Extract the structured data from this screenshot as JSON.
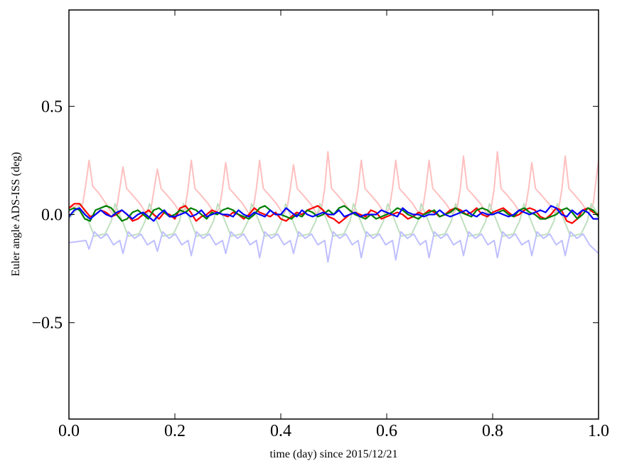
{
  "chart_data": {
    "type": "line",
    "title": "",
    "xlabel": "time (day) since 2015/12/21",
    "ylabel": "Euler angle ADS-ISS (deg)",
    "xlim": [
      0.0,
      1.0
    ],
    "ylim": [
      -0.945,
      0.945
    ],
    "xticks": [
      0.0,
      0.2,
      0.4,
      0.6,
      0.8,
      1.0
    ],
    "xtick_labels": [
      "0.0",
      "0.2",
      "0.4",
      "0.6",
      "0.8",
      "1.0"
    ],
    "yticks": [
      -0.5,
      0.0,
      0.5
    ],
    "ytick_labels": [
      "−0.5",
      "0.0",
      "0.5"
    ],
    "grid": false,
    "legend": "none",
    "series": [
      {
        "color": "#ffbfbf",
        "x": [
          0,
          0.026,
          0.032,
          0.038,
          0.045,
          0.056,
          0.07,
          0.083,
          0.09,
          0.096,
          0.102,
          0.109,
          0.12,
          0.134,
          0.147,
          0.155,
          0.161,
          0.167,
          0.174,
          0.185,
          0.199,
          0.212,
          0.219,
          0.225,
          0.231,
          0.238,
          0.249,
          0.263,
          0.276,
          0.284,
          0.29,
          0.296,
          0.303,
          0.314,
          0.328,
          0.341,
          0.348,
          0.354,
          0.36,
          0.367,
          0.378,
          0.392,
          0.405,
          0.412,
          0.418,
          0.424,
          0.431,
          0.442,
          0.456,
          0.469,
          0.477,
          0.483,
          0.489,
          0.496,
          0.507,
          0.521,
          0.534,
          0.54,
          0.546,
          0.552,
          0.559,
          0.57,
          0.584,
          0.597,
          0.605,
          0.611,
          0.617,
          0.624,
          0.635,
          0.649,
          0.662,
          0.668,
          0.674,
          0.68,
          0.687,
          0.698,
          0.712,
          0.725,
          0.733,
          0.739,
          0.745,
          0.752,
          0.763,
          0.777,
          0.79,
          0.797,
          0.803,
          0.809,
          0.816,
          0.827,
          0.841,
          0.854,
          0.862,
          0.868,
          0.874,
          0.881,
          0.892,
          0.906,
          0.919,
          0.925,
          0.931,
          0.937,
          0.944,
          0.955,
          0.969,
          0.982,
          0.99,
          1.0
        ],
        "y": [
          0.03,
          0.05,
          0.14,
          0.25,
          0.13,
          0.1,
          0.05,
          0.0,
          0.03,
          0.12,
          0.22,
          0.12,
          0.09,
          0.05,
          0.0,
          0.03,
          0.12,
          0.21,
          0.12,
          0.09,
          0.05,
          0.0,
          0.03,
          0.12,
          0.25,
          0.12,
          0.09,
          0.05,
          0.0,
          0.03,
          0.12,
          0.24,
          0.12,
          0.09,
          0.05,
          0.0,
          0.03,
          0.12,
          0.25,
          0.12,
          0.09,
          0.05,
          0.0,
          0.03,
          0.12,
          0.23,
          0.12,
          0.09,
          0.05,
          0.0,
          0.03,
          0.12,
          0.29,
          0.12,
          0.09,
          0.05,
          0.0,
          0.03,
          0.12,
          0.25,
          0.12,
          0.09,
          0.05,
          0.0,
          0.03,
          0.12,
          0.25,
          0.12,
          0.09,
          0.05,
          0.0,
          0.03,
          0.12,
          0.25,
          0.12,
          0.09,
          0.05,
          0.0,
          0.03,
          0.12,
          0.27,
          0.12,
          0.09,
          0.05,
          0.0,
          0.03,
          0.12,
          0.29,
          0.12,
          0.09,
          0.05,
          0.0,
          0.03,
          0.12,
          0.24,
          0.12,
          0.09,
          0.05,
          0.0,
          0.03,
          0.12,
          0.27,
          0.12,
          0.09,
          0.05,
          0.0,
          0.05,
          0.25
        ]
      },
      {
        "color": "#bfdfbf",
        "x": [
          0,
          0.023,
          0.035,
          0.048,
          0.068,
          0.08,
          0.087,
          0.099,
          0.112,
          0.132,
          0.144,
          0.152,
          0.164,
          0.177,
          0.197,
          0.209,
          0.216,
          0.228,
          0.241,
          0.261,
          0.273,
          0.281,
          0.293,
          0.306,
          0.326,
          0.338,
          0.345,
          0.357,
          0.37,
          0.39,
          0.402,
          0.409,
          0.421,
          0.434,
          0.454,
          0.466,
          0.474,
          0.486,
          0.499,
          0.519,
          0.531,
          0.537,
          0.549,
          0.562,
          0.582,
          0.594,
          0.602,
          0.614,
          0.627,
          0.647,
          0.659,
          0.665,
          0.677,
          0.69,
          0.71,
          0.722,
          0.73,
          0.742,
          0.755,
          0.775,
          0.787,
          0.794,
          0.806,
          0.819,
          0.839,
          0.851,
          0.859,
          0.871,
          0.884,
          0.904,
          0.916,
          0.922,
          0.934,
          0.947,
          0.967,
          0.979,
          0.986,
          1.0
        ],
        "y": [
          -0.02,
          0.05,
          -0.02,
          -0.1,
          -0.09,
          -0.03,
          0.05,
          -0.02,
          -0.1,
          -0.09,
          -0.03,
          0.05,
          -0.02,
          -0.1,
          -0.09,
          -0.03,
          0.05,
          -0.02,
          -0.1,
          -0.09,
          -0.03,
          0.05,
          -0.02,
          -0.1,
          -0.09,
          -0.03,
          0.05,
          -0.02,
          -0.1,
          -0.09,
          -0.03,
          0.05,
          -0.02,
          -0.1,
          -0.09,
          -0.03,
          0.05,
          -0.02,
          -0.1,
          -0.09,
          -0.03,
          0.05,
          -0.02,
          -0.1,
          -0.09,
          -0.03,
          0.05,
          -0.02,
          -0.1,
          -0.09,
          -0.03,
          0.05,
          -0.02,
          -0.1,
          -0.09,
          -0.03,
          0.05,
          -0.02,
          -0.1,
          -0.09,
          -0.03,
          0.05,
          -0.02,
          -0.1,
          -0.09,
          -0.03,
          0.05,
          -0.02,
          -0.1,
          -0.09,
          -0.03,
          0.05,
          -0.02,
          -0.1,
          -0.09,
          -0.03,
          0.05,
          0.0
        ]
      },
      {
        "color": "#bfbfff",
        "x": [
          0,
          0.032,
          0.038,
          0.048,
          0.06,
          0.072,
          0.084,
          0.096,
          0.102,
          0.112,
          0.124,
          0.136,
          0.148,
          0.161,
          0.167,
          0.177,
          0.189,
          0.201,
          0.213,
          0.225,
          0.231,
          0.241,
          0.253,
          0.265,
          0.277,
          0.29,
          0.296,
          0.306,
          0.318,
          0.33,
          0.342,
          0.354,
          0.36,
          0.37,
          0.382,
          0.394,
          0.406,
          0.418,
          0.424,
          0.434,
          0.446,
          0.458,
          0.47,
          0.483,
          0.489,
          0.499,
          0.511,
          0.523,
          0.535,
          0.546,
          0.552,
          0.562,
          0.574,
          0.586,
          0.598,
          0.611,
          0.617,
          0.627,
          0.639,
          0.651,
          0.663,
          0.674,
          0.68,
          0.69,
          0.702,
          0.714,
          0.726,
          0.739,
          0.745,
          0.755,
          0.767,
          0.779,
          0.791,
          0.803,
          0.809,
          0.819,
          0.831,
          0.843,
          0.855,
          0.868,
          0.874,
          0.884,
          0.896,
          0.908,
          0.92,
          0.931,
          0.937,
          0.947,
          0.959,
          0.971,
          0.983,
          1.0
        ],
        "y": [
          -0.13,
          -0.12,
          -0.16,
          -0.08,
          -0.11,
          -0.09,
          -0.14,
          -0.12,
          -0.18,
          -0.08,
          -0.11,
          -0.09,
          -0.14,
          -0.12,
          -0.17,
          -0.08,
          -0.11,
          -0.09,
          -0.14,
          -0.12,
          -0.19,
          -0.08,
          -0.11,
          -0.09,
          -0.14,
          -0.12,
          -0.18,
          -0.08,
          -0.11,
          -0.09,
          -0.14,
          -0.12,
          -0.2,
          -0.08,
          -0.11,
          -0.09,
          -0.14,
          -0.12,
          -0.18,
          -0.08,
          -0.11,
          -0.09,
          -0.14,
          -0.12,
          -0.22,
          -0.08,
          -0.11,
          -0.09,
          -0.14,
          -0.12,
          -0.2,
          -0.08,
          -0.11,
          -0.09,
          -0.14,
          -0.12,
          -0.21,
          -0.08,
          -0.11,
          -0.09,
          -0.14,
          -0.12,
          -0.2,
          -0.08,
          -0.11,
          -0.09,
          -0.14,
          -0.12,
          -0.19,
          -0.08,
          -0.11,
          -0.09,
          -0.14,
          -0.12,
          -0.2,
          -0.08,
          -0.11,
          -0.09,
          -0.14,
          -0.12,
          -0.19,
          -0.08,
          -0.11,
          -0.09,
          -0.14,
          -0.12,
          -0.19,
          -0.08,
          -0.11,
          -0.09,
          -0.14,
          -0.18
        ]
      },
      {
        "color": "#ff0000",
        "x_step": 0.01,
        "y": [
          0.03,
          0.05,
          0.05,
          0.02,
          -0.01,
          0.0,
          0.02,
          0.01,
          -0.01,
          0.0,
          0.02,
          0.0,
          -0.03,
          -0.02,
          0.0,
          0.02,
          0.0,
          -0.02,
          0.01,
          0.0,
          -0.02,
          0.03,
          0.04,
          0.01,
          -0.03,
          -0.01,
          0.0,
          0.02,
          0.01,
          0.0,
          -0.01,
          0.01,
          0.0,
          -0.02,
          0.0,
          0.03,
          0.01,
          0.0,
          -0.01,
          0.01,
          -0.02,
          -0.03,
          -0.01,
          0.01,
          0.0,
          0.02,
          0.03,
          0.04,
          0.02,
          -0.01,
          -0.02,
          -0.04,
          -0.02,
          0.0,
          0.01,
          0.0,
          -0.01,
          0.02,
          0.01,
          -0.02,
          -0.01,
          0.0,
          0.01,
          0.0,
          -0.02,
          -0.01,
          0.01,
          0.0,
          0.02,
          0.01,
          -0.01,
          0.0,
          0.02,
          0.03,
          0.02,
          0.0,
          0.01,
          0.03,
          0.0,
          -0.01,
          0.01,
          0.02,
          0.03,
          0.01,
          -0.01,
          0.0,
          0.02,
          0.03,
          0.02,
          -0.01,
          -0.02,
          0.0,
          0.03,
          0.02,
          -0.03,
          -0.04,
          -0.02,
          0.02,
          0.03,
          0.01,
          0.0
        ]
      },
      {
        "color": "#008000",
        "x_step": 0.01,
        "y": [
          0.02,
          0.03,
          0.02,
          -0.02,
          -0.03,
          0.02,
          0.03,
          0.04,
          0.03,
          0.0,
          -0.03,
          -0.02,
          0.01,
          0.02,
          0.0,
          -0.02,
          0.02,
          0.03,
          0.01,
          -0.01,
          0.0,
          0.02,
          0.01,
          0.03,
          0.02,
          0.0,
          -0.02,
          0.01,
          0.0,
          0.02,
          0.03,
          0.02,
          0.0,
          -0.01,
          -0.02,
          0.0,
          0.03,
          0.04,
          0.02,
          0.0,
          0.0,
          -0.01,
          -0.02,
          0.0,
          -0.01,
          0.02,
          0.01,
          -0.01,
          0.0,
          0.02,
          0.0,
          0.03,
          0.04,
          0.02,
          0.0,
          -0.01,
          -0.02,
          0.0,
          -0.02,
          -0.01,
          0.0,
          0.01,
          0.03,
          0.02,
          0.0,
          -0.01,
          -0.02,
          0.0,
          0.01,
          0.02,
          -0.01,
          0.0,
          0.01,
          0.03,
          0.01,
          0.0,
          -0.01,
          0.02,
          0.03,
          0.02,
          0.0,
          0.01,
          0.02,
          0.0,
          -0.01,
          0.02,
          0.03,
          0.01,
          0.0,
          -0.02,
          -0.02,
          -0.01,
          0.0,
          0.02,
          0.03,
          0.01,
          -0.02,
          0.0,
          0.03,
          0.02,
          -0.01
        ]
      },
      {
        "color": "#0000ff",
        "x_step": 0.01,
        "y": [
          -0.01,
          0.02,
          0.03,
          0.0,
          -0.02,
          0.0,
          0.02,
          0.0,
          -0.01,
          0.01,
          0.02,
          0.0,
          -0.02,
          0.0,
          0.01,
          -0.01,
          -0.03,
          0.0,
          0.02,
          -0.01,
          -0.01,
          0.0,
          0.01,
          -0.01,
          0.0,
          0.02,
          -0.01,
          0.0,
          0.01,
          0.0,
          0.0,
          -0.01,
          0.02,
          0.0,
          -0.01,
          0.01,
          0.0,
          -0.01,
          0.02,
          0.0,
          0.0,
          0.03,
          0.01,
          -0.01,
          0.02,
          0.0,
          -0.01,
          0.0,
          0.01,
          0.0,
          0.0,
          0.02,
          -0.01,
          0.0,
          0.01,
          -0.01,
          0.0,
          0.0,
          0.0,
          0.02,
          0.01,
          0.0,
          -0.01,
          0.03,
          0.01,
          0.0,
          0.0,
          -0.01,
          0.0,
          0.0,
          0.02,
          0.0,
          -0.01,
          0.0,
          0.01,
          0.02,
          0.0,
          -0.01,
          0.01,
          0.0,
          0.0,
          0.01,
          0.0,
          -0.01,
          0.0,
          0.02,
          0.01,
          0.0,
          0.01,
          0.02,
          0.01,
          0.04,
          0.03,
          0.0,
          -0.01,
          0.02,
          0.0,
          0.02,
          0.01,
          -0.02,
          -0.02
        ]
      }
    ]
  }
}
